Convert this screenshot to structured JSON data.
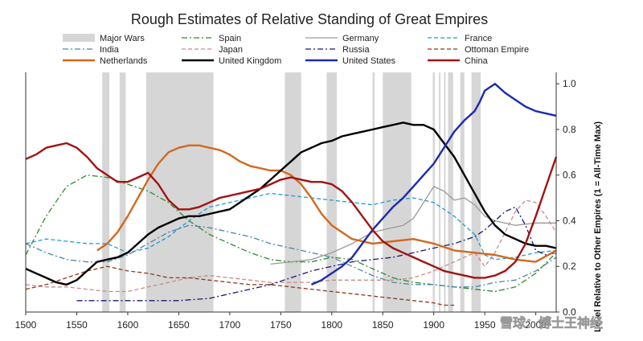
{
  "chart_data": {
    "type": "line",
    "title": "Rough Estimates of Relative Standing of Great Empires",
    "ylabel": "Level Relative to Other Empires (1 = All-Time Max)",
    "xlim": [
      1500,
      2020
    ],
    "ylim": [
      0,
      1.05
    ],
    "x_ticks": [
      1500,
      1550,
      1600,
      1650,
      1700,
      1750,
      1800,
      1850,
      1900,
      1950,
      2000
    ],
    "x_tick_labels": [
      "1500",
      "1550",
      "1600",
      "1650",
      "1700",
      "1750",
      "1800",
      "1850",
      "1900",
      "1950",
      "2000"
    ],
    "y_ticks": [
      0,
      0.2,
      0.4,
      0.6,
      0.8,
      1.0
    ],
    "y_tick_labels": [
      "0.0",
      "0.2",
      "0.4",
      "0.6",
      "0.8",
      "1.0"
    ],
    "y_axis_side": "right",
    "grid": false,
    "legend_placement": "top",
    "major_wars_label": "Major Wars",
    "major_wars": [
      [
        1575,
        1582
      ],
      [
        1592,
        1598
      ],
      [
        1618,
        1684
      ],
      [
        1754,
        1770
      ],
      [
        1795,
        1805
      ],
      [
        1840,
        1842
      ],
      [
        1850,
        1878
      ],
      [
        1899,
        1901
      ],
      [
        1905,
        1906
      ],
      [
        1910,
        1911
      ],
      [
        1914,
        1919
      ],
      [
        1926,
        1930
      ],
      [
        1937,
        1946
      ]
    ],
    "series": [
      {
        "name": "Spain",
        "color": "#2e8b2e",
        "dash": "dashdot",
        "x": [
          1500,
          1520,
          1540,
          1560,
          1580,
          1600,
          1620,
          1640,
          1660,
          1680,
          1700,
          1720,
          1740,
          1760,
          1780,
          1800,
          1820,
          1840,
          1860,
          1880,
          1900,
          1920,
          1940,
          1960,
          1980,
          2000,
          2020
        ],
        "y": [
          0.25,
          0.42,
          0.55,
          0.6,
          0.59,
          0.56,
          0.53,
          0.48,
          0.4,
          0.34,
          0.3,
          0.26,
          0.23,
          0.22,
          0.22,
          0.24,
          0.23,
          0.19,
          0.15,
          0.13,
          0.12,
          0.11,
          0.1,
          0.09,
          0.11,
          0.17,
          0.26
        ]
      },
      {
        "name": "Germany",
        "color": "#9a9a9a",
        "dash": "solid",
        "x": [
          1740,
          1760,
          1780,
          1800,
          1820,
          1840,
          1860,
          1870,
          1880,
          1890,
          1900,
          1910,
          1920,
          1930,
          1940,
          1950,
          1960,
          1980,
          2000,
          2020
        ],
        "y": [
          0.21,
          0.22,
          0.23,
          0.26,
          0.3,
          0.35,
          0.37,
          0.38,
          0.41,
          0.48,
          0.55,
          0.53,
          0.49,
          0.5,
          0.47,
          0.42,
          0.4,
          0.38,
          0.39,
          0.39
        ]
      },
      {
        "name": "France",
        "color": "#1f9ad6",
        "dash": "dashed",
        "x": [
          1500,
          1520,
          1540,
          1560,
          1580,
          1600,
          1620,
          1640,
          1660,
          1680,
          1700,
          1720,
          1740,
          1760,
          1780,
          1800,
          1820,
          1840,
          1860,
          1880,
          1900,
          1920,
          1940,
          1950,
          1960,
          1980,
          2000,
          2020
        ],
        "y": [
          0.3,
          0.32,
          0.31,
          0.3,
          0.3,
          0.26,
          0.28,
          0.33,
          0.4,
          0.46,
          0.48,
          0.5,
          0.52,
          0.51,
          0.5,
          0.49,
          0.48,
          0.47,
          0.49,
          0.5,
          0.48,
          0.42,
          0.34,
          0.25,
          0.23,
          0.24,
          0.26,
          0.27
        ]
      },
      {
        "name": "India",
        "color": "#4a86a8",
        "dash": "dashdot",
        "x": [
          1500,
          1520,
          1540,
          1560,
          1580,
          1600,
          1620,
          1640,
          1660,
          1680,
          1700,
          1720,
          1740,
          1760,
          1780,
          1800,
          1820,
          1840,
          1860,
          1880,
          1900,
          1920,
          1940,
          1960,
          1980,
          2000,
          2020
        ],
        "y": [
          0.3,
          0.26,
          0.23,
          0.22,
          0.22,
          0.25,
          0.3,
          0.35,
          0.38,
          0.37,
          0.35,
          0.33,
          0.3,
          0.28,
          0.26,
          0.24,
          0.2,
          0.16,
          0.13,
          0.12,
          0.12,
          0.11,
          0.11,
          0.13,
          0.14,
          0.18,
          0.24
        ]
      },
      {
        "name": "Japan",
        "color": "#c98a8a",
        "dash": "dashed",
        "x": [
          1500,
          1520,
          1540,
          1560,
          1580,
          1600,
          1620,
          1640,
          1660,
          1680,
          1700,
          1720,
          1740,
          1760,
          1780,
          1800,
          1820,
          1840,
          1860,
          1880,
          1900,
          1920,
          1940,
          1950,
          1960,
          1970,
          1980,
          1990,
          2000,
          2010,
          2020
        ],
        "y": [
          0.12,
          0.11,
          0.11,
          0.1,
          0.09,
          0.09,
          0.11,
          0.13,
          0.15,
          0.16,
          0.15,
          0.14,
          0.13,
          0.13,
          0.13,
          0.14,
          0.14,
          0.14,
          0.14,
          0.15,
          0.18,
          0.22,
          0.26,
          0.2,
          0.26,
          0.35,
          0.44,
          0.49,
          0.48,
          0.42,
          0.35
        ]
      },
      {
        "name": "Russia",
        "color": "#1a1a6e",
        "dash": "dashdot",
        "x": [
          1550,
          1580,
          1600,
          1620,
          1650,
          1680,
          1700,
          1720,
          1740,
          1760,
          1780,
          1800,
          1820,
          1840,
          1860,
          1880,
          1900,
          1920,
          1940,
          1950,
          1960,
          1970,
          1980,
          1990,
          2000,
          2010,
          2020
        ],
        "y": [
          0.05,
          0.05,
          0.05,
          0.05,
          0.05,
          0.06,
          0.08,
          0.1,
          0.12,
          0.15,
          0.18,
          0.2,
          0.22,
          0.23,
          0.24,
          0.26,
          0.28,
          0.3,
          0.33,
          0.36,
          0.4,
          0.44,
          0.46,
          0.38,
          0.27,
          0.25,
          0.26
        ]
      },
      {
        "name": "Ottoman Empire",
        "color": "#8b3a1a",
        "dash": "dashed",
        "x": [
          1500,
          1520,
          1540,
          1560,
          1580,
          1600,
          1620,
          1640,
          1660,
          1680,
          1700,
          1720,
          1740,
          1760,
          1780,
          1800,
          1820,
          1840,
          1860,
          1880,
          1900,
          1910,
          1920
        ],
        "y": [
          0.1,
          0.12,
          0.15,
          0.18,
          0.2,
          0.18,
          0.17,
          0.15,
          0.15,
          0.14,
          0.13,
          0.12,
          0.12,
          0.11,
          0.1,
          0.09,
          0.08,
          0.07,
          0.06,
          0.05,
          0.04,
          0.03,
          0.03
        ]
      },
      {
        "name": "Netherlands",
        "color": "#d2691e",
        "dash": "solid",
        "x": [
          1570,
          1580,
          1590,
          1600,
          1610,
          1620,
          1630,
          1640,
          1650,
          1660,
          1670,
          1680,
          1690,
          1700,
          1710,
          1720,
          1730,
          1740,
          1750,
          1760,
          1770,
          1780,
          1790,
          1800,
          1820,
          1840,
          1860,
          1880,
          1900,
          1920,
          1940,
          1960,
          1980,
          2000,
          2020
        ],
        "y": [
          0.27,
          0.3,
          0.35,
          0.42,
          0.5,
          0.58,
          0.65,
          0.7,
          0.72,
          0.73,
          0.73,
          0.72,
          0.71,
          0.69,
          0.66,
          0.64,
          0.63,
          0.62,
          0.62,
          0.6,
          0.56,
          0.5,
          0.43,
          0.38,
          0.32,
          0.3,
          0.31,
          0.32,
          0.3,
          0.27,
          0.26,
          0.25,
          0.23,
          0.22,
          0.27
        ]
      },
      {
        "name": "United Kingdom",
        "color": "#000000",
        "dash": "solid",
        "x": [
          1500,
          1510,
          1520,
          1530,
          1540,
          1550,
          1560,
          1570,
          1580,
          1590,
          1600,
          1610,
          1620,
          1630,
          1640,
          1650,
          1660,
          1670,
          1680,
          1690,
          1700,
          1710,
          1720,
          1730,
          1740,
          1750,
          1760,
          1770,
          1780,
          1790,
          1800,
          1810,
          1820,
          1830,
          1840,
          1850,
          1860,
          1870,
          1880,
          1890,
          1900,
          1910,
          1920,
          1930,
          1940,
          1950,
          1960,
          1970,
          1980,
          1990,
          2000,
          2010,
          2020
        ],
        "y": [
          0.19,
          0.17,
          0.15,
          0.13,
          0.12,
          0.14,
          0.18,
          0.22,
          0.23,
          0.24,
          0.26,
          0.3,
          0.34,
          0.37,
          0.39,
          0.41,
          0.42,
          0.42,
          0.43,
          0.44,
          0.45,
          0.48,
          0.51,
          0.54,
          0.58,
          0.62,
          0.66,
          0.7,
          0.72,
          0.74,
          0.75,
          0.77,
          0.78,
          0.79,
          0.8,
          0.81,
          0.82,
          0.83,
          0.82,
          0.82,
          0.8,
          0.74,
          0.68,
          0.6,
          0.52,
          0.44,
          0.38,
          0.34,
          0.32,
          0.3,
          0.29,
          0.29,
          0.28
        ]
      },
      {
        "name": "United States",
        "color": "#1b2bb0",
        "dash": "solid",
        "x": [
          1780,
          1790,
          1800,
          1810,
          1820,
          1830,
          1840,
          1850,
          1860,
          1870,
          1880,
          1890,
          1900,
          1910,
          1920,
          1930,
          1940,
          1945,
          1950,
          1960,
          1970,
          1980,
          1990,
          2000,
          2010,
          2020
        ],
        "y": [
          0.12,
          0.14,
          0.17,
          0.2,
          0.24,
          0.3,
          0.36,
          0.41,
          0.46,
          0.5,
          0.55,
          0.6,
          0.65,
          0.72,
          0.79,
          0.84,
          0.88,
          0.92,
          0.97,
          1.0,
          0.96,
          0.93,
          0.9,
          0.88,
          0.87,
          0.86
        ]
      },
      {
        "name": "China",
        "color": "#a01414",
        "dash": "solid",
        "x": [
          1500,
          1510,
          1520,
          1530,
          1540,
          1550,
          1560,
          1570,
          1580,
          1590,
          1600,
          1610,
          1620,
          1630,
          1640,
          1650,
          1660,
          1670,
          1680,
          1690,
          1700,
          1710,
          1720,
          1730,
          1740,
          1750,
          1760,
          1770,
          1780,
          1790,
          1800,
          1810,
          1820,
          1830,
          1840,
          1850,
          1860,
          1870,
          1880,
          1890,
          1900,
          1910,
          1920,
          1930,
          1940,
          1950,
          1960,
          1970,
          1980,
          1990,
          2000,
          2010,
          2020
        ],
        "y": [
          0.67,
          0.69,
          0.72,
          0.73,
          0.74,
          0.72,
          0.68,
          0.63,
          0.6,
          0.57,
          0.57,
          0.59,
          0.61,
          0.56,
          0.49,
          0.45,
          0.45,
          0.46,
          0.48,
          0.5,
          0.51,
          0.52,
          0.53,
          0.54,
          0.56,
          0.58,
          0.59,
          0.58,
          0.57,
          0.57,
          0.56,
          0.53,
          0.48,
          0.42,
          0.36,
          0.31,
          0.28,
          0.26,
          0.24,
          0.22,
          0.2,
          0.18,
          0.17,
          0.16,
          0.15,
          0.15,
          0.16,
          0.18,
          0.22,
          0.3,
          0.42,
          0.55,
          0.68
        ]
      }
    ]
  },
  "watermark": "雪球：博士王神经"
}
